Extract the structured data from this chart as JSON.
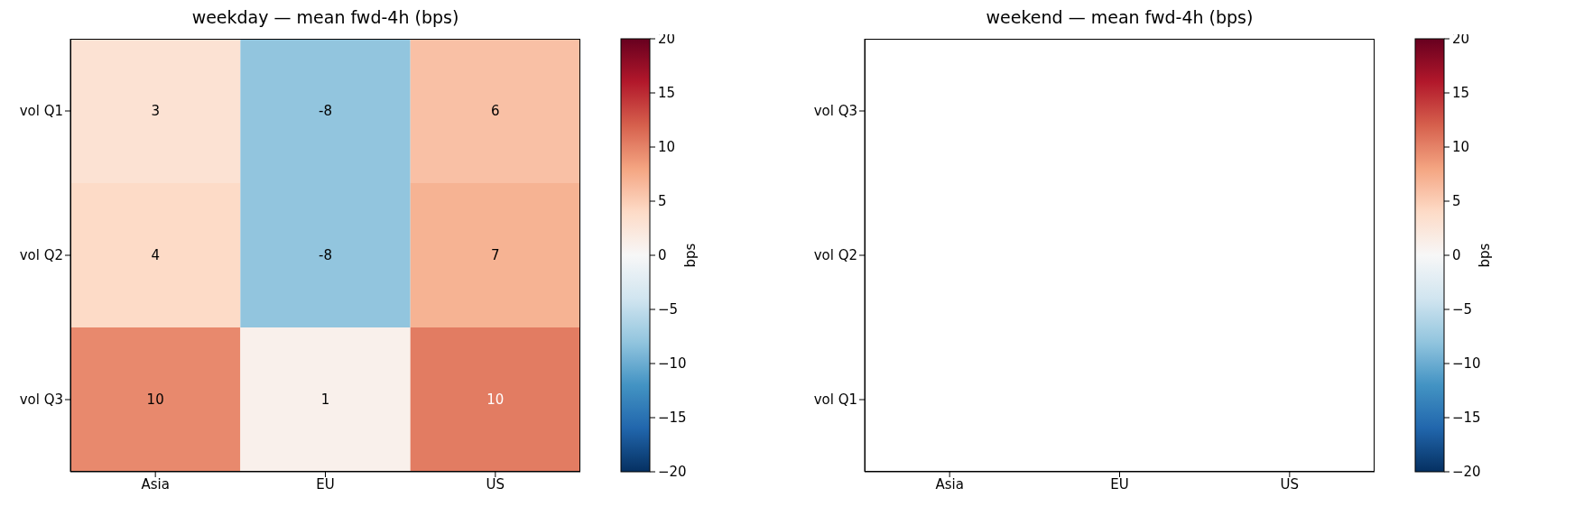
{
  "chart_data": [
    {
      "type": "heatmap",
      "title": "weekday — mean fwd-4h (bps)",
      "categories": [
        "Asia",
        "EU",
        "US"
      ],
      "y_categories": [
        "vol Q1",
        "vol Q2",
        "vol Q3"
      ],
      "cells": [
        [
          3,
          -8,
          6
        ],
        [
          4,
          -8,
          7
        ],
        [
          9.6,
          1,
          10.4
        ]
      ],
      "cell_labels": [
        [
          "3",
          "-8",
          "6"
        ],
        [
          "4",
          "-8",
          "7"
        ],
        [
          "10",
          "1",
          "10"
        ]
      ],
      "clim": [
        -20,
        20
      ],
      "cticks": [
        -20,
        -15,
        -10,
        -5,
        0,
        5,
        10,
        15,
        20
      ],
      "clabel": "bps"
    },
    {
      "type": "heatmap",
      "title": "weekend — mean fwd-4h (bps)",
      "categories": [
        "Asia",
        "EU",
        "US"
      ],
      "y_categories": [
        "vol Q3",
        "vol Q2",
        "vol Q1"
      ],
      "cells": [
        [
          null,
          null,
          null
        ],
        [
          null,
          null,
          null
        ],
        [
          null,
          null,
          null
        ]
      ],
      "clim": [
        -20,
        20
      ],
      "cticks": [
        -20,
        -15,
        -10,
        -5,
        0,
        5,
        10,
        15,
        20
      ],
      "clabel": "bps"
    }
  ]
}
